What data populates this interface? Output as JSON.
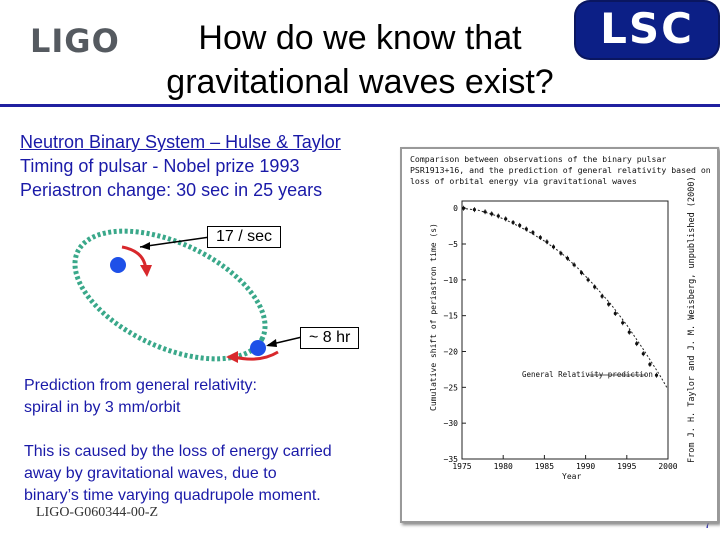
{
  "header": {
    "logo_left": "LIGO",
    "title_line1": "How do we know that",
    "title_line2": "gravitational waves exist?",
    "logo_right": "LSC"
  },
  "left_text": {
    "line1": "Neutron Binary System – Hulse & Taylor",
    "line2": "Timing of pulsar -  Nobel prize 1993",
    "line3": "Periastron change: 30 sec in 25 years"
  },
  "diagram": {
    "callout_top": "17 / sec",
    "callout_bottom": "~ 8 hr"
  },
  "prediction": {
    "line1": "Prediction from general relativity:",
    "line2": " spiral in by 3 mm/orbit"
  },
  "explanation": {
    "line1": "This is caused by the loss of energy carried",
    "line2": "away by gravitational waves, due to",
    "line3": "binary’s time varying quadrupole moment."
  },
  "footer": {
    "doc_id": "LIGO-G060344-00-Z",
    "page": "7"
  },
  "plot": {
    "caption_line1": "Comparison  between  observations  of  the  binary  pulsar",
    "caption_line2": "PSR1913+16,  and the prediction of general relativity based on",
    "caption_line3": "loss of orbital energy via gravitational waves",
    "ylabel": "Cumulative shift of periastron time (s)",
    "xlabel": "Year",
    "side_credit": "From J. H. Taylor and J. M. Weisberg, unpublished (2000)",
    "curve_label": "General Relativity prediction",
    "y_ticks": [
      "0",
      "−5",
      "−10",
      "−15",
      "−20",
      "−25",
      "−30",
      "−35"
    ],
    "x_ticks": [
      "1975",
      "1980",
      "1985",
      "1990",
      "1995",
      "2000"
    ]
  },
  "chart_data": {
    "type": "scatter",
    "x": [
      1975.2,
      1976.5,
      1977.8,
      1978.6,
      1979.4,
      1980.3,
      1981.2,
      1982.0,
      1982.8,
      1983.6,
      1984.5,
      1985.3,
      1986.1,
      1987.0,
      1987.8,
      1988.6,
      1989.5,
      1990.3,
      1991.1,
      1992.0,
      1992.8,
      1993.6,
      1994.5,
      1995.3,
      1996.2,
      1997.0,
      1997.8,
      1998.6
    ],
    "y": [
      0.0,
      -0.2,
      -0.5,
      -0.8,
      -1.1,
      -1.5,
      -2.0,
      -2.4,
      -2.9,
      -3.4,
      -4.1,
      -4.7,
      -5.4,
      -6.3,
      -7.0,
      -7.9,
      -9.0,
      -10.0,
      -11.0,
      -12.3,
      -13.4,
      -14.7,
      -16.0,
      -17.3,
      -18.9,
      -20.3,
      -21.8,
      -23.3
    ],
    "curve_x": [
      1975,
      1977,
      1979,
      1981,
      1983,
      1985,
      1987,
      1989,
      1991,
      1993,
      1995,
      1997,
      1999,
      2000
    ],
    "curve_y": [
      0.0,
      -0.3,
      -1.0,
      -2.0,
      -3.2,
      -4.6,
      -6.2,
      -8.3,
      -10.7,
      -13.3,
      -16.3,
      -19.7,
      -23.3,
      -25.3
    ],
    "xlim": [
      1975,
      2000
    ],
    "ylim": [
      -35,
      1
    ],
    "xlabel": "Year",
    "ylabel": "Cumulative shift of periastron time (s)"
  }
}
